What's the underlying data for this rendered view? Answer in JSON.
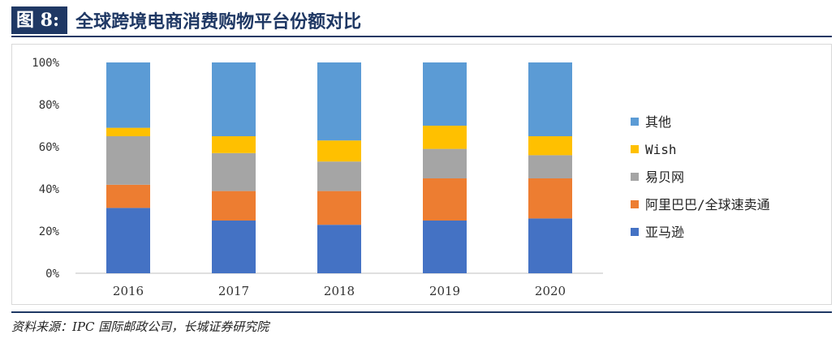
{
  "header": {
    "fig_label": "图 8:",
    "title": "全球跨境电商消费购物平台份额对比"
  },
  "source": "资料来源：IPC 国际邮政公司，长城证券研究院",
  "chart_data": {
    "type": "bar",
    "stacked": true,
    "categories": [
      "2016",
      "2017",
      "2018",
      "2019",
      "2020"
    ],
    "ylim": [
      0,
      100
    ],
    "yticks": [
      "0%",
      "20%",
      "40%",
      "60%",
      "80%",
      "100%"
    ],
    "grid": false,
    "legend_position": "right",
    "series": [
      {
        "name": "亚马逊",
        "color": "#4472c4",
        "values": [
          31,
          25,
          23,
          25,
          26
        ]
      },
      {
        "name": "阿里巴巴/全球速卖通",
        "color": "#ed7d31",
        "values": [
          11,
          14,
          16,
          20,
          19
        ]
      },
      {
        "name": "易贝网",
        "color": "#a5a5a5",
        "values": [
          23,
          18,
          14,
          14,
          11
        ]
      },
      {
        "name": "Wish",
        "color": "#ffc000",
        "values": [
          4,
          8,
          10,
          11,
          9
        ]
      },
      {
        "name": "其他",
        "color": "#5b9bd5",
        "values": [
          31,
          35,
          37,
          30,
          35
        ]
      }
    ]
  }
}
